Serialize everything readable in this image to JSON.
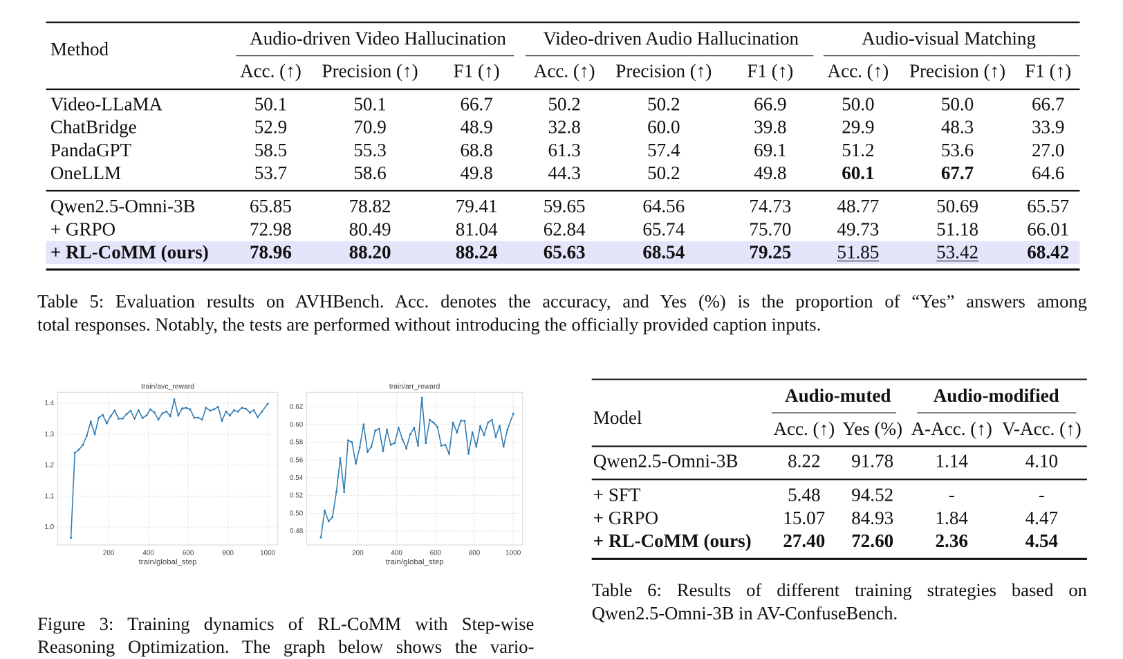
{
  "table5": {
    "method_header": "Method",
    "groups": [
      "Audio-driven Video Hallucination",
      "Video-driven Audio Hallucination",
      "Audio-visual Matching"
    ],
    "subheaders": [
      "Acc. (↑)",
      "Precision (↑)",
      "F1 (↑)",
      "Acc. (↑)",
      "Precision (↑)",
      "F1 (↑)",
      "Acc. (↑)",
      "Precision (↑)",
      "F1 (↑)"
    ],
    "rows": [
      {
        "method": "Video-LLaMA",
        "values": [
          "50.1",
          "50.1",
          "66.7",
          "50.2",
          "50.2",
          "66.9",
          "50.0",
          "50.0",
          "66.7"
        ],
        "bold": [],
        "underline": []
      },
      {
        "method": "ChatBridge",
        "values": [
          "52.9",
          "70.9",
          "48.9",
          "32.8",
          "60.0",
          "39.8",
          "29.9",
          "48.3",
          "33.9"
        ],
        "bold": [],
        "underline": []
      },
      {
        "method": "PandaGPT",
        "values": [
          "58.5",
          "55.3",
          "68.8",
          "61.3",
          "57.4",
          "69.1",
          "51.2",
          "53.6",
          "27.0"
        ],
        "bold": [],
        "underline": []
      },
      {
        "method": "OneLLM",
        "values": [
          "53.7",
          "58.6",
          "49.8",
          "44.3",
          "50.2",
          "49.8",
          "60.1",
          "67.7",
          "64.6"
        ],
        "bold": [
          6,
          7
        ],
        "underline": []
      },
      {
        "method": "Qwen2.5-Omni-3B",
        "values": [
          "65.85",
          "78.82",
          "79.41",
          "59.65",
          "64.56",
          "74.73",
          "48.77",
          "50.69",
          "65.57"
        ],
        "bold": [],
        "underline": []
      },
      {
        "method": "+ GRPO",
        "values": [
          "72.98",
          "80.49",
          "81.04",
          "62.84",
          "65.74",
          "75.70",
          "49.73",
          "51.18",
          "66.01"
        ],
        "bold": [],
        "underline": []
      },
      {
        "method": "+ RL-CoMM (ours)",
        "values": [
          "78.96",
          "88.20",
          "88.24",
          "65.63",
          "68.54",
          "79.25",
          "51.85",
          "53.42",
          "68.42"
        ],
        "bold": [
          0,
          1,
          2,
          3,
          4,
          5,
          8
        ],
        "underline": [
          6,
          7
        ],
        "method_bold": true,
        "highlight": true
      }
    ],
    "highlight_color": "#e4e4fa",
    "caption_lines": [
      "Table 5: Evaluation results on AVHBench. Acc. denotes the accuracy, and Yes (%) is the proportion of “Yes” answers among",
      "total responses. Notably, the tests are performed without introducing the officially provided caption inputs."
    ]
  },
  "table6": {
    "model_header": "Model",
    "groups": [
      "Audio-muted",
      "Audio-modified"
    ],
    "subheaders": [
      "Acc. (↑)",
      "Yes (%)",
      "A-Acc. (↑)",
      "V-Acc. (↑)"
    ],
    "rows": [
      {
        "method": "Qwen2.5-Omni-3B",
        "values": [
          "8.22",
          "91.78",
          "1.14",
          "4.10"
        ],
        "bold": [],
        "underline": []
      },
      {
        "method": "+ SFT",
        "values": [
          "5.48",
          "94.52",
          "-",
          "-"
        ],
        "bold": [],
        "underline": []
      },
      {
        "method": "+ GRPO",
        "values": [
          "15.07",
          "84.93",
          "1.84",
          "4.47"
        ],
        "bold": [],
        "underline": []
      },
      {
        "method": "+ RL-CoMM (ours)",
        "values": [
          "27.40",
          "72.60",
          "2.36",
          "4.54"
        ],
        "bold": [
          0,
          1,
          2,
          3
        ],
        "underline": [],
        "method_bold": true
      }
    ],
    "caption_lines": [
      "Table 6: Results of different training strategies based on",
      "Qwen2.5-Omni-3B in AV-ConfuseBench."
    ]
  },
  "figure3": {
    "caption_lines": [
      "Figure 3: Training dynamics of RL-CoMM with Step-wise",
      "Reasoning Optimization. The graph below shows the vario-"
    ]
  },
  "chart_data": [
    {
      "type": "line",
      "title": "train/avc_reward",
      "xlabel": "train/global_step",
      "ylabel": "",
      "xticks": [
        200,
        400,
        600,
        800,
        1000
      ],
      "yticks": [
        1.0,
        1.1,
        1.2,
        1.3,
        1.4
      ],
      "ytick_labels": [
        "1.0",
        "1.1",
        "1.2",
        "1.3",
        "1.4"
      ],
      "xlim": [
        -57,
        1051
      ],
      "ylim": [
        0.942,
        1.435
      ],
      "grid": true,
      "color": "#2e7bb4",
      "x": [
        10,
        30,
        50,
        70,
        90,
        110,
        130,
        150,
        170,
        190,
        210,
        230,
        250,
        270,
        290,
        310,
        330,
        350,
        370,
        390,
        410,
        430,
        450,
        470,
        490,
        510,
        530,
        550,
        570,
        590,
        610,
        630,
        650,
        670,
        690,
        710,
        730,
        750,
        770,
        790,
        810,
        830,
        850,
        870,
        890,
        910,
        930,
        950,
        970,
        1000
      ],
      "y": [
        0.965,
        1.24,
        1.25,
        1.265,
        1.295,
        1.34,
        1.3,
        1.353,
        1.362,
        1.335,
        1.358,
        1.376,
        1.35,
        1.35,
        1.365,
        1.375,
        1.35,
        1.377,
        1.352,
        1.36,
        1.38,
        1.37,
        1.347,
        1.367,
        1.373,
        1.358,
        1.412,
        1.36,
        1.383,
        1.385,
        1.38,
        1.353,
        1.353,
        1.347,
        1.385,
        1.376,
        1.38,
        1.388,
        1.343,
        1.373,
        1.36,
        1.377,
        1.373,
        1.385,
        1.382,
        1.37,
        1.377,
        1.355,
        1.372,
        1.398
      ]
    },
    {
      "type": "line",
      "title": "train/arr_reward",
      "xlabel": "train/global_step",
      "ylabel": "",
      "xticks": [
        200,
        400,
        600,
        800,
        1000
      ],
      "yticks": [
        0.48,
        0.5,
        0.52,
        0.54,
        0.56,
        0.58,
        0.6,
        0.62
      ],
      "ytick_labels": [
        "0.48",
        "0.50",
        "0.52",
        "0.54",
        "0.56",
        "0.58",
        "0.60",
        "0.62"
      ],
      "xlim": [
        -63,
        1048
      ],
      "ylim": [
        0.4645,
        0.636
      ],
      "grid": true,
      "color": "#2e7bb4",
      "x": [
        10,
        30,
        50,
        70,
        90,
        110,
        130,
        150,
        170,
        190,
        210,
        230,
        250,
        270,
        290,
        310,
        330,
        350,
        370,
        390,
        410,
        430,
        450,
        470,
        490,
        510,
        530,
        550,
        570,
        590,
        610,
        630,
        650,
        670,
        690,
        710,
        730,
        750,
        770,
        790,
        810,
        830,
        850,
        870,
        890,
        910,
        930,
        950,
        970,
        1000
      ],
      "y": [
        0.473,
        0.503,
        0.491,
        0.496,
        0.524,
        0.562,
        0.524,
        0.582,
        0.58,
        0.556,
        0.574,
        0.6,
        0.569,
        0.575,
        0.593,
        0.595,
        0.57,
        0.594,
        0.577,
        0.579,
        0.596,
        0.583,
        0.573,
        0.589,
        0.596,
        0.576,
        0.63,
        0.579,
        0.605,
        0.602,
        0.597,
        0.576,
        0.577,
        0.567,
        0.602,
        0.591,
        0.604,
        0.604,
        0.567,
        0.591,
        0.575,
        0.598,
        0.588,
        0.602,
        0.605,
        0.586,
        0.598,
        0.575,
        0.594,
        0.612
      ]
    }
  ]
}
